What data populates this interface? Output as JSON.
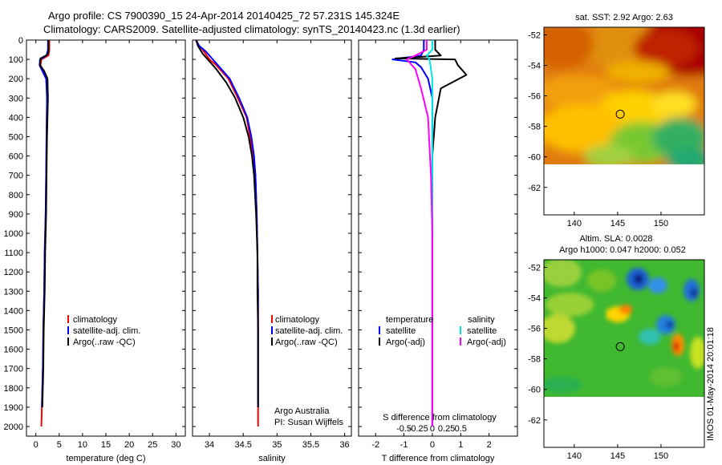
{
  "header": {
    "line1": "Argo profile: CS 7900390_15 24-Apr-2014 20140425_72 57.231S 145.324E",
    "line2": "Climatology: CARS2009. Satellite-adjusted climatology: synTS_20140423.nc (1.3d earlier)"
  },
  "side_stamp": "IMOS 01-May-2014 20:01:18",
  "chart_data": [
    {
      "type": "line",
      "id": "temperature",
      "xlabel": "temperature (deg C)",
      "ylabel": "",
      "xlim": [
        -2,
        32
      ],
      "ylim": [
        2050,
        0
      ],
      "xticks": [
        0,
        5,
        10,
        15,
        20,
        25,
        30
      ],
      "yticks": [
        0,
        100,
        200,
        300,
        400,
        500,
        600,
        700,
        800,
        900,
        1000,
        1100,
        1200,
        1300,
        1400,
        1500,
        1600,
        1700,
        1800,
        1900,
        2000
      ],
      "legend": [
        "climatology",
        "satellite-adj. clim.",
        "Argo(..raw -QC)"
      ],
      "series": [
        {
          "name": "climatology",
          "color": "#ff0000",
          "points": [
            [
              2.9,
              0
            ],
            [
              2.9,
              50
            ],
            [
              2.7,
              80
            ],
            [
              1.2,
              100
            ],
            [
              1.0,
              130
            ],
            [
              1.6,
              160
            ],
            [
              2.3,
              200
            ],
            [
              2.4,
              300
            ],
            [
              2.3,
              500
            ],
            [
              2.2,
              700
            ],
            [
              2.1,
              900
            ],
            [
              1.9,
              1100
            ],
            [
              1.8,
              1300
            ],
            [
              1.6,
              1500
            ],
            [
              1.5,
              1700
            ],
            [
              1.3,
              1900
            ],
            [
              1.2,
              2000
            ]
          ]
        },
        {
          "name": "satellite-adj. clim.",
          "color": "#0000ff",
          "points": [
            [
              2.6,
              0
            ],
            [
              2.6,
              50
            ],
            [
              2.3,
              80
            ],
            [
              0.9,
              100
            ],
            [
              0.8,
              130
            ],
            [
              1.4,
              160
            ],
            [
              2.2,
              200
            ],
            [
              2.4,
              300
            ],
            [
              2.3,
              500
            ],
            [
              2.2,
              700
            ],
            [
              2.1,
              900
            ],
            [
              1.9,
              1100
            ],
            [
              1.8,
              1300
            ],
            [
              1.6,
              1500
            ],
            [
              1.5,
              1700
            ],
            [
              1.3,
              1900
            ]
          ]
        },
        {
          "name": "Argo(..raw -QC)",
          "color": "#000000",
          "points": [
            [
              2.7,
              0
            ],
            [
              2.7,
              60
            ],
            [
              2.5,
              75
            ],
            [
              1.0,
              95
            ],
            [
              0.9,
              130
            ],
            [
              1.8,
              160
            ],
            [
              2.5,
              200
            ],
            [
              2.6,
              300
            ],
            [
              2.4,
              500
            ],
            [
              2.3,
              700
            ],
            [
              2.2,
              900
            ],
            [
              2.0,
              1100
            ],
            [
              1.9,
              1300
            ],
            [
              1.7,
              1500
            ],
            [
              1.6,
              1700
            ],
            [
              1.4,
              1900
            ]
          ]
        }
      ]
    },
    {
      "type": "line",
      "id": "salinity",
      "xlabel": "salinity",
      "ylabel": "",
      "xlim": [
        33.75,
        36.1
      ],
      "ylim": [
        2050,
        0
      ],
      "xticks": [
        34,
        34.5,
        35,
        35.5,
        36
      ],
      "legend": [
        "climatology",
        "satellite-adj. clim.",
        "Argo(..raw -QC)"
      ],
      "series": [
        {
          "name": "climatology",
          "color": "#ff0000",
          "points": [
            [
              33.8,
              0
            ],
            [
              33.82,
              20
            ],
            [
              33.9,
              50
            ],
            [
              34.0,
              100
            ],
            [
              34.1,
              130
            ],
            [
              34.28,
              200
            ],
            [
              34.42,
              300
            ],
            [
              34.55,
              400
            ],
            [
              34.6,
              500
            ],
            [
              34.65,
              600
            ],
            [
              34.68,
              700
            ],
            [
              34.7,
              900
            ],
            [
              34.71,
              1100
            ],
            [
              34.72,
              1300
            ],
            [
              34.72,
              1500
            ],
            [
              34.72,
              1700
            ],
            [
              34.72,
              2000
            ]
          ]
        },
        {
          "name": "satellite-adj. clim.",
          "color": "#0000ff",
          "points": [
            [
              33.8,
              0
            ],
            [
              33.85,
              30
            ],
            [
              33.95,
              60
            ],
            [
              34.05,
              100
            ],
            [
              34.15,
              140
            ],
            [
              34.3,
              200
            ],
            [
              34.44,
              300
            ],
            [
              34.56,
              400
            ],
            [
              34.62,
              500
            ],
            [
              34.66,
              600
            ],
            [
              34.68,
              700
            ],
            [
              34.7,
              900
            ],
            [
              34.71,
              1100
            ],
            [
              34.72,
              1300
            ],
            [
              34.72,
              1500
            ],
            [
              34.72,
              1700
            ],
            [
              34.72,
              1900
            ]
          ]
        },
        {
          "name": "Argo(..raw -QC)",
          "color": "#000000",
          "points": [
            [
              33.81,
              0
            ],
            [
              33.83,
              30
            ],
            [
              33.9,
              70
            ],
            [
              34.0,
              110
            ],
            [
              34.1,
              150
            ],
            [
              34.25,
              220
            ],
            [
              34.38,
              300
            ],
            [
              34.5,
              400
            ],
            [
              34.58,
              500
            ],
            [
              34.63,
              600
            ],
            [
              34.66,
              700
            ],
            [
              34.69,
              900
            ],
            [
              34.71,
              1100
            ],
            [
              34.71,
              1300
            ],
            [
              34.72,
              1500
            ],
            [
              34.72,
              1700
            ],
            [
              34.72,
              1900
            ]
          ]
        }
      ]
    },
    {
      "type": "line",
      "id": "differences",
      "xlabel": "T difference from climatology",
      "xlabel_top": "S difference from climatology",
      "ylabel": "",
      "xlim": [
        -2.6,
        3.0
      ],
      "ylim": [
        2050,
        0
      ],
      "xticks": [
        -2,
        -1,
        0,
        1,
        2
      ],
      "xticks_S": [
        -0.5,
        -0.25,
        0,
        0.25,
        0.5
      ],
      "xticks_S_labels": [
        "-0.5",
        "-0.25",
        "0",
        "0.25",
        "0.5"
      ],
      "legend_temperature": "temperature",
      "legend_salinity": "salinity",
      "legend": [
        "satellite",
        "Argo(-adj)",
        "satellite",
        "Argo(-adj)"
      ],
      "series": [
        {
          "name": "satellite",
          "color": "#0000ff",
          "points": [
            [
              -0.3,
              0
            ],
            [
              -0.3,
              50
            ],
            [
              -0.4,
              80
            ],
            [
              -1.4,
              100
            ],
            [
              -0.6,
              115
            ],
            [
              -0.4,
              140
            ],
            [
              -0.15,
              200
            ],
            [
              0,
              300
            ],
            [
              0,
              2000
            ]
          ]
        },
        {
          "name": "Argo(-adj)",
          "color": "#000000",
          "points": [
            [
              0.1,
              0
            ],
            [
              0.1,
              50
            ],
            [
              0.3,
              80
            ],
            [
              -1.3,
              95
            ],
            [
              0.8,
              100
            ],
            [
              0.9,
              130
            ],
            [
              1.2,
              180
            ],
            [
              0.3,
              250
            ],
            [
              0.1,
              400
            ],
            [
              0,
              600
            ],
            [
              0,
              2000
            ]
          ]
        },
        {
          "name": "satellite",
          "color": "#00e5e5",
          "points": [
            [
              0,
              0
            ],
            [
              0,
              50
            ],
            [
              -0.2,
              80
            ],
            [
              -0.1,
              100
            ],
            [
              -0.05,
              150
            ],
            [
              0,
              200
            ],
            [
              0,
              2000
            ]
          ]
        },
        {
          "name": "Argo(-adj)",
          "color": "#ff00ff",
          "points": [
            [
              -0.2,
              0
            ],
            [
              -0.2,
              50
            ],
            [
              -0.6,
              80
            ],
            [
              -0.9,
              100
            ],
            [
              -0.6,
              150
            ],
            [
              -0.4,
              250
            ],
            [
              -0.15,
              400
            ],
            [
              -0.05,
              700
            ],
            [
              0,
              1000
            ],
            [
              0,
              2000
            ]
          ]
        }
      ]
    },
    {
      "type": "heatmap",
      "id": "sst_map",
      "title": "sat. SST: 2.92 Argo: 2.63",
      "xlim": [
        136.5,
        155
      ],
      "ylim": [
        -63.8,
        -51.5
      ],
      "xticks": [
        140,
        145,
        150
      ],
      "yticks": [
        -52,
        -54,
        -56,
        -58,
        -60,
        -62
      ],
      "marker": [
        145.3,
        -57.2
      ],
      "data_extent_lat": [
        -60,
        -51.5
      ]
    },
    {
      "type": "heatmap",
      "id": "sla_map",
      "title_line1": "Altim. SLA: 0.0028",
      "title_line2": "Argo h1000: 0.047 h2000: 0.052",
      "xlim": [
        136.5,
        155
      ],
      "ylim": [
        -63.8,
        -51.5
      ],
      "xticks": [
        140,
        145,
        150
      ],
      "yticks": [
        -52,
        -54,
        -56,
        -58,
        -60,
        -62
      ],
      "marker": [
        145.3,
        -57.2
      ],
      "data_extent_lat": [
        -60,
        -51.5
      ]
    }
  ]
}
